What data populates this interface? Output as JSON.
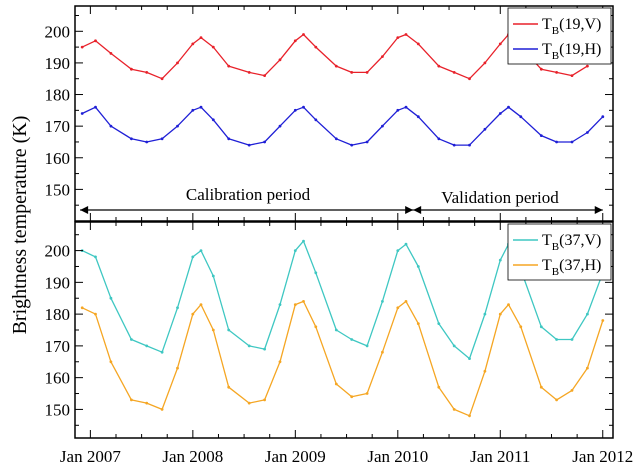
{
  "y_axis_label": "Brightness temperature (K)",
  "x_tick_labels": [
    "Jan 2007",
    "Jan 2008",
    "Jan 2009",
    "Jan 2010",
    "Jan 2011",
    "Jan 2012"
  ],
  "annotations": {
    "calibration": "Calibration period",
    "validation": "Validation period"
  },
  "chart_data": [
    {
      "type": "line",
      "panel": "top",
      "x_range": [
        2006.85,
        2012.1
      ],
      "ylim": [
        140,
        208
      ],
      "yticks": [
        150,
        160,
        170,
        180,
        190,
        200
      ],
      "x_ticks": [
        2007,
        2008,
        2009,
        2010,
        2011,
        2012
      ],
      "legend_position": "top-right",
      "grid": false,
      "arrows": [
        {
          "label": "Calibration period",
          "from": 2006.9,
          "to": 2010.15
        },
        {
          "label": "Validation period",
          "from": 2010.15,
          "to": 2012.0
        }
      ],
      "series": [
        {
          "legend": {
            "main": "T",
            "sub": "B",
            "rest": "(19,V)"
          },
          "color": "#e8212a",
          "style": "line",
          "x": [
            2006.92,
            2007.05,
            2007.2,
            2007.4,
            2007.55,
            2007.7,
            2007.85,
            2008.0,
            2008.08,
            2008.2,
            2008.35,
            2008.55,
            2008.7,
            2008.85,
            2009.0,
            2009.08,
            2009.2,
            2009.4,
            2009.55,
            2009.7,
            2009.85,
            2010.0,
            2010.08,
            2010.2,
            2010.4,
            2010.55,
            2010.7,
            2010.85,
            2011.0,
            2011.08,
            2011.2,
            2011.4,
            2011.55,
            2011.7,
            2011.85
          ],
          "y": [
            195,
            197,
            193,
            188,
            187,
            185,
            190,
            196,
            198,
            195,
            189,
            187,
            186,
            191,
            197,
            199,
            195,
            189,
            187,
            187,
            192,
            198,
            199,
            196,
            189,
            187,
            185,
            190,
            196,
            199,
            195,
            188,
            187,
            186,
            189
          ]
        },
        {
          "legend": {
            "main": "T",
            "sub": "B",
            "rest": "(19,H)"
          },
          "color": "#1f1fd6",
          "style": "line",
          "x": [
            2006.92,
            2007.05,
            2007.2,
            2007.4,
            2007.55,
            2007.7,
            2007.85,
            2008.0,
            2008.08,
            2008.2,
            2008.35,
            2008.55,
            2008.7,
            2008.85,
            2009.0,
            2009.08,
            2009.2,
            2009.4,
            2009.55,
            2009.7,
            2009.85,
            2010.0,
            2010.08,
            2010.2,
            2010.4,
            2010.55,
            2010.7,
            2010.85,
            2011.0,
            2011.08,
            2011.2,
            2011.4,
            2011.55,
            2011.7,
            2011.85,
            2012.0
          ],
          "y": [
            174,
            176,
            170,
            166,
            165,
            166,
            170,
            175,
            176,
            172,
            166,
            164,
            165,
            170,
            175,
            176,
            172,
            166,
            164,
            165,
            170,
            175,
            176,
            173,
            166,
            164,
            164,
            169,
            174,
            176,
            173,
            167,
            165,
            165,
            168,
            173
          ]
        }
      ]
    },
    {
      "type": "line",
      "panel": "bottom",
      "x_range": [
        2006.85,
        2012.1
      ],
      "ylim": [
        141,
        209
      ],
      "yticks": [
        150,
        160,
        170,
        180,
        190,
        200
      ],
      "x_ticks": [
        2007,
        2008,
        2009,
        2010,
        2011,
        2012
      ],
      "legend_position": "top-right",
      "grid": false,
      "series": [
        {
          "legend": {
            "main": "T",
            "sub": "B",
            "rest": "(37,V)"
          },
          "color": "#3ec7c2",
          "style": "line",
          "x": [
            2006.92,
            2007.05,
            2007.2,
            2007.4,
            2007.55,
            2007.7,
            2007.85,
            2008.0,
            2008.08,
            2008.2,
            2008.35,
            2008.55,
            2008.7,
            2008.85,
            2009.0,
            2009.08,
            2009.2,
            2009.4,
            2009.55,
            2009.7,
            2009.85,
            2010.0,
            2010.08,
            2010.2,
            2010.4,
            2010.55,
            2010.7,
            2010.85,
            2011.0,
            2011.08,
            2011.2,
            2011.4,
            2011.55,
            2011.7,
            2011.85,
            2012.0
          ],
          "y": [
            200,
            198,
            185,
            172,
            170,
            168,
            182,
            198,
            200,
            192,
            175,
            170,
            169,
            183,
            200,
            203,
            193,
            175,
            172,
            170,
            184,
            200,
            202,
            195,
            177,
            170,
            166,
            180,
            197,
            202,
            194,
            176,
            172,
            172,
            180,
            193
          ]
        },
        {
          "legend": {
            "main": "T",
            "sub": "B",
            "rest": "(37,H)"
          },
          "color": "#f5a623",
          "style": "line",
          "x": [
            2006.92,
            2007.05,
            2007.2,
            2007.4,
            2007.55,
            2007.7,
            2007.85,
            2008.0,
            2008.08,
            2008.2,
            2008.35,
            2008.55,
            2008.7,
            2008.85,
            2009.0,
            2009.08,
            2009.2,
            2009.4,
            2009.55,
            2009.7,
            2009.85,
            2010.0,
            2010.08,
            2010.2,
            2010.4,
            2010.55,
            2010.7,
            2010.85,
            2011.0,
            2011.08,
            2011.2,
            2011.4,
            2011.55,
            2011.7,
            2011.85,
            2012.0
          ],
          "y": [
            182,
            180,
            165,
            153,
            152,
            150,
            163,
            180,
            183,
            175,
            157,
            152,
            153,
            165,
            183,
            184,
            176,
            158,
            154,
            155,
            168,
            182,
            184,
            177,
            157,
            150,
            148,
            162,
            180,
            183,
            176,
            157,
            153,
            156,
            163,
            178
          ]
        }
      ]
    }
  ]
}
